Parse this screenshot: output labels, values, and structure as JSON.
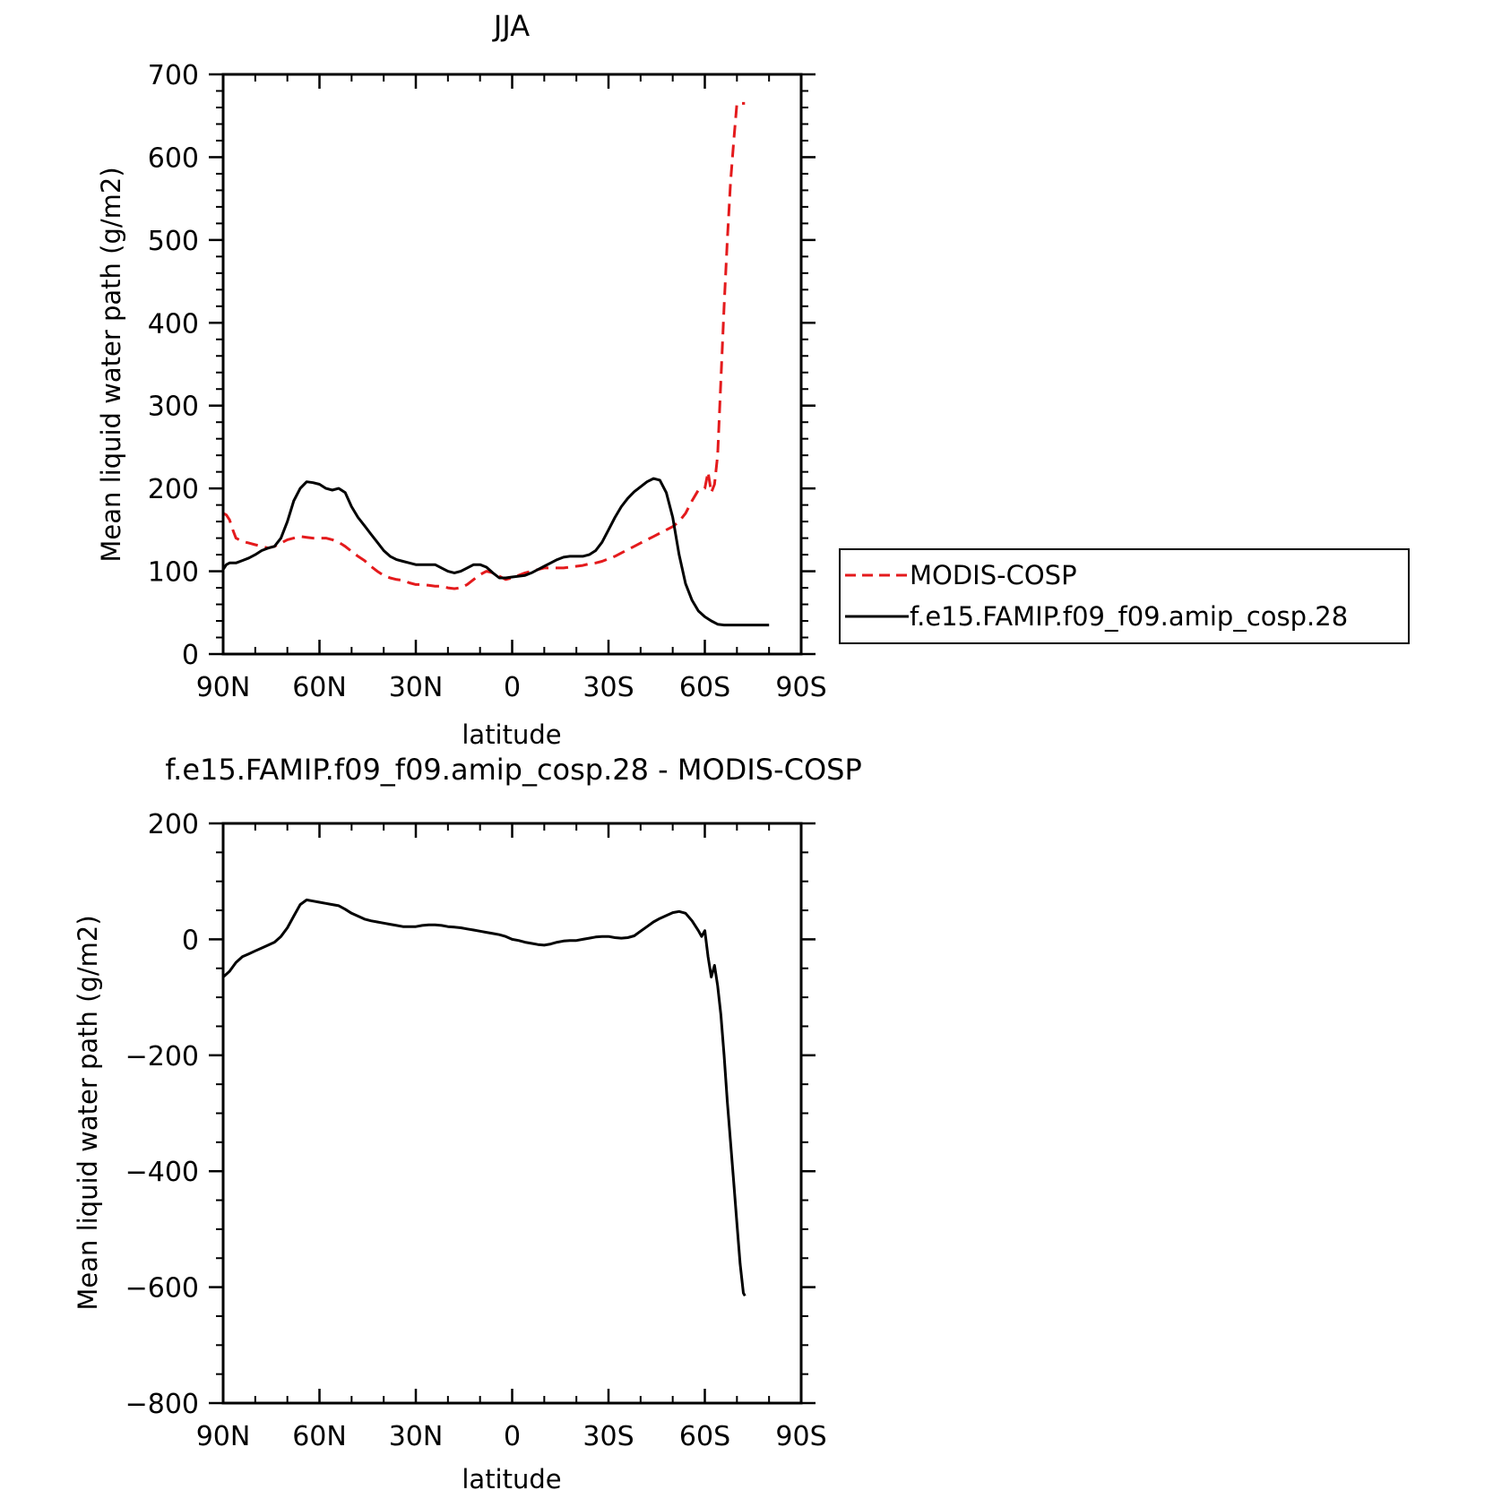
{
  "colors": {
    "model": "#000000",
    "obs": "#e41a1c",
    "background": "#ffffff"
  },
  "chart_data": [
    {
      "id": "top",
      "type": "line",
      "title": "JJA",
      "xlabel": "latitude",
      "ylabel": "Mean liquid water path (g/m2)",
      "xlim": [
        90,
        -90
      ],
      "ylim": [
        0,
        700
      ],
      "x_ticks": [
        90,
        60,
        30,
        0,
        -30,
        -60,
        -90
      ],
      "x_tick_labels": [
        "90N",
        "60N",
        "30N",
        "0",
        "30S",
        "60S",
        "90S"
      ],
      "y_ticks": [
        0,
        100,
        200,
        300,
        400,
        500,
        600,
        700
      ],
      "y_tick_labels": [
        "0",
        "100",
        "200",
        "300",
        "400",
        "500",
        "600",
        "700"
      ],
      "grid": false,
      "legend_position": "right",
      "series": [
        {
          "name": "MODIS-COSP",
          "color": "#e41a1c",
          "dash": "dashed",
          "x": [
            90,
            89,
            88,
            87,
            86,
            84,
            82,
            80,
            78,
            76,
            74,
            72,
            70,
            68,
            66,
            64,
            62,
            60,
            58,
            56,
            54,
            52,
            50,
            48,
            46,
            44,
            42,
            40,
            38,
            36,
            34,
            32,
            30,
            28,
            26,
            24,
            22,
            20,
            18,
            16,
            14,
            12,
            10,
            8,
            6,
            4,
            2,
            0,
            -2,
            -4,
            -6,
            -8,
            -10,
            -12,
            -14,
            -16,
            -18,
            -20,
            -22,
            -24,
            -26,
            -28,
            -30,
            -32,
            -34,
            -36,
            -38,
            -40,
            -42,
            -44,
            -46,
            -48,
            -50,
            -52,
            -54,
            -56,
            -58,
            -60,
            -61,
            -62,
            -63,
            -64,
            -65,
            -66,
            -67,
            -68,
            -69,
            -70,
            -71,
            -72,
            -72.5
          ],
          "values": [
            170,
            168,
            162,
            150,
            140,
            136,
            134,
            132,
            130,
            128,
            130,
            134,
            138,
            140,
            142,
            141,
            140,
            140,
            140,
            138,
            135,
            130,
            124,
            118,
            113,
            106,
            100,
            95,
            92,
            90,
            89,
            86,
            84,
            84,
            83,
            82,
            82,
            80,
            79,
            80,
            84,
            90,
            96,
            100,
            98,
            94,
            90,
            92,
            95,
            98,
            100,
            102,
            104,
            104,
            104,
            104,
            105,
            106,
            107,
            109,
            110,
            112,
            115,
            118,
            122,
            126,
            130,
            134,
            138,
            142,
            146,
            150,
            154,
            160,
            170,
            185,
            198,
            200,
            220,
            195,
            205,
            240,
            330,
            420,
            500,
            570,
            620,
            665,
            665,
            665,
            665
          ]
        },
        {
          "name": "f.e15.FAMIP.f09_f09.amip_cosp.28",
          "color": "#000000",
          "dash": "solid",
          "x": [
            90,
            89,
            88,
            86,
            84,
            82,
            80,
            78,
            76,
            74,
            72,
            70,
            68,
            66,
            64,
            62,
            60,
            58,
            56,
            54,
            52,
            50,
            48,
            46,
            44,
            42,
            40,
            38,
            36,
            34,
            32,
            30,
            28,
            26,
            24,
            22,
            20,
            18,
            16,
            14,
            12,
            10,
            8,
            6,
            4,
            2,
            0,
            -2,
            -4,
            -6,
            -8,
            -10,
            -12,
            -14,
            -16,
            -18,
            -20,
            -22,
            -24,
            -26,
            -28,
            -30,
            -32,
            -34,
            -36,
            -38,
            -40,
            -42,
            -44,
            -46,
            -48,
            -50,
            -52,
            -54,
            -56,
            -58,
            -60,
            -62,
            -64,
            -66,
            -68,
            -70,
            -72,
            -74,
            -76,
            -78,
            -80
          ],
          "values": [
            102,
            108,
            110,
            110,
            113,
            116,
            120,
            125,
            128,
            130,
            140,
            160,
            185,
            200,
            208,
            207,
            205,
            200,
            198,
            200,
            195,
            178,
            165,
            155,
            145,
            135,
            125,
            118,
            114,
            112,
            110,
            108,
            108,
            108,
            108,
            104,
            100,
            98,
            100,
            104,
            108,
            108,
            105,
            98,
            92,
            92,
            93,
            94,
            95,
            98,
            102,
            106,
            110,
            114,
            117,
            118,
            118,
            118,
            120,
            125,
            135,
            150,
            165,
            178,
            188,
            196,
            202,
            208,
            212,
            210,
            195,
            165,
            120,
            85,
            65,
            52,
            45,
            40,
            36,
            35,
            35,
            35,
            35,
            35,
            35,
            35,
            35
          ]
        }
      ],
      "legend": [
        "MODIS-COSP",
        "f.e15.FAMIP.f09_f09.amip_cosp.28"
      ]
    },
    {
      "id": "bottom",
      "type": "line",
      "title": "f.e15.FAMIP.f09_f09.amip_cosp.28 - MODIS-COSP",
      "xlabel": "latitude",
      "ylabel": "Mean liquid water path (g/m2)",
      "xlim": [
        90,
        -90
      ],
      "ylim": [
        -800,
        200
      ],
      "x_ticks": [
        90,
        60,
        30,
        0,
        -30,
        -60,
        -90
      ],
      "x_tick_labels": [
        "90N",
        "60N",
        "30N",
        "0",
        "30S",
        "60S",
        "90S"
      ],
      "y_ticks": [
        -800,
        -600,
        -400,
        -200,
        0,
        200
      ],
      "y_tick_labels": [
        "−800",
        "−600",
        "−400",
        "−200",
        "0",
        "200"
      ],
      "grid": false,
      "series": [
        {
          "color": "#000000",
          "dash": "solid",
          "x": [
            90,
            88,
            86,
            84,
            82,
            80,
            78,
            76,
            74,
            72,
            70,
            68,
            66,
            64,
            62,
            60,
            58,
            56,
            54,
            52,
            50,
            48,
            46,
            44,
            42,
            40,
            38,
            36,
            34,
            32,
            30,
            28,
            26,
            24,
            22,
            20,
            18,
            16,
            14,
            12,
            10,
            8,
            6,
            4,
            2,
            0,
            -2,
            -4,
            -6,
            -8,
            -10,
            -12,
            -14,
            -16,
            -18,
            -20,
            -22,
            -24,
            -26,
            -28,
            -30,
            -32,
            -34,
            -36,
            -38,
            -40,
            -42,
            -44,
            -46,
            -48,
            -50,
            -52,
            -54,
            -56,
            -58,
            -59,
            -60,
            -61,
            -62,
            -63,
            -64,
            -65,
            -66,
            -67,
            -68,
            -69,
            -70,
            -71,
            -72,
            -72.5
          ],
          "values": [
            -65,
            -55,
            -40,
            -30,
            -25,
            -20,
            -15,
            -10,
            -5,
            5,
            20,
            40,
            60,
            68,
            66,
            64,
            62,
            60,
            58,
            52,
            45,
            40,
            35,
            32,
            30,
            28,
            26,
            24,
            22,
            22,
            22,
            24,
            25,
            25,
            24,
            22,
            21,
            20,
            18,
            16,
            14,
            12,
            10,
            8,
            5,
            0,
            -2,
            -5,
            -7,
            -9,
            -10,
            -8,
            -5,
            -3,
            -2,
            -2,
            0,
            2,
            4,
            5,
            5,
            3,
            2,
            3,
            6,
            14,
            22,
            30,
            36,
            41,
            46,
            48,
            45,
            32,
            15,
            5,
            15,
            -30,
            -65,
            -45,
            -80,
            -130,
            -200,
            -280,
            -350,
            -420,
            -490,
            -560,
            -610,
            -615
          ]
        }
      ]
    }
  ]
}
